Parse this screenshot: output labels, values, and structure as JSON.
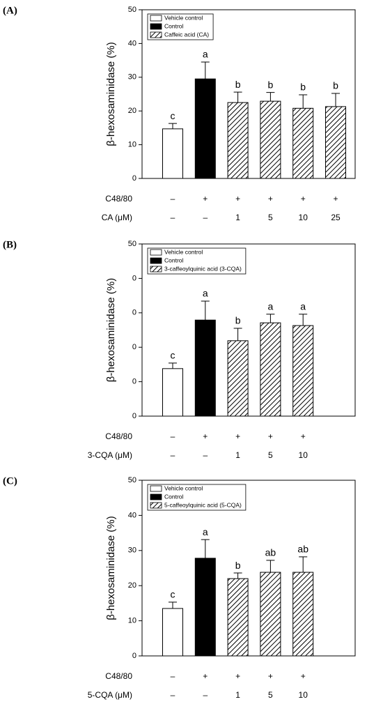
{
  "chart_data": [
    {
      "type": "bar",
      "panel": "(A)",
      "ylabel": "β-hexosaminidase (%)",
      "categories": [
        null,
        null,
        null,
        null,
        null,
        null
      ],
      "ylim": [
        0,
        50
      ],
      "yticks": [
        0,
        10,
        20,
        30,
        40,
        50
      ],
      "series": [
        {
          "name": "Vehicle control",
          "color": "#ffffff",
          "values": [
            14.7,
            null,
            null,
            null,
            null,
            null
          ],
          "errors": [
            1.6,
            null,
            null,
            null,
            null,
            null
          ]
        },
        {
          "name": "Control",
          "color": "#000000",
          "values": [
            null,
            29.5,
            null,
            null,
            null,
            null
          ],
          "errors": [
            null,
            5.0,
            null,
            null,
            null,
            null
          ]
        },
        {
          "name": "Caffeic acid (CA)",
          "color": "#ffffff",
          "pattern": "hatch",
          "values": [
            null,
            null,
            22.5,
            22.9,
            20.8,
            21.3
          ],
          "errors": [
            null,
            null,
            3.1,
            2.6,
            4.0,
            3.9
          ]
        }
      ],
      "letters": [
        "c",
        "a",
        "b",
        "b",
        "b",
        "b"
      ],
      "rows": [
        {
          "label": "C48/80",
          "values": [
            "–",
            "+",
            "+",
            "+",
            "+",
            "+"
          ]
        },
        {
          "label": "CA (μM)",
          "values": [
            "–",
            "–",
            "1",
            "5",
            "10",
            "25"
          ]
        }
      ]
    },
    {
      "type": "bar",
      "panel": "(B)",
      "ylabel": "β-hexosaminidase (%)",
      "categories": [
        null,
        null,
        null,
        null,
        null
      ],
      "ylim": [
        0,
        50
      ],
      "yticks": [
        0,
        {
          "value": 10,
          "label": "0"
        },
        {
          "value": 20,
          "label": "0"
        },
        {
          "value": 30,
          "label": "0"
        },
        {
          "value": 40,
          "label": "0"
        },
        50
      ],
      "series": [
        {
          "name": "Vehicle control",
          "color": "#ffffff",
          "values": [
            13.8,
            null,
            null,
            null,
            null
          ],
          "errors": [
            1.6,
            null,
            null,
            null,
            null
          ]
        },
        {
          "name": "Control",
          "color": "#000000",
          "values": [
            null,
            27.9,
            null,
            null,
            null
          ],
          "errors": [
            null,
            5.5,
            null,
            null,
            null
          ]
        },
        {
          "name": "3-caffeoylquinic acid (3-CQA)",
          "color": "#ffffff",
          "pattern": "hatch",
          "values": [
            null,
            null,
            21.9,
            27.1,
            26.3
          ],
          "errors": [
            null,
            null,
            3.6,
            2.5,
            3.3
          ]
        }
      ],
      "letters": [
        "c",
        "a",
        "b",
        "a",
        "a"
      ],
      "rows": [
        {
          "label": "C48/80",
          "values": [
            "–",
            "+",
            "+",
            "+",
            "+"
          ]
        },
        {
          "label": "3-CQA (μM)",
          "values": [
            "–",
            "–",
            "1",
            "5",
            "10"
          ]
        }
      ]
    },
    {
      "type": "bar",
      "panel": "(C)",
      "ylabel": "β-hexosaminidase (%)",
      "categories": [
        null,
        null,
        null,
        null,
        null
      ],
      "ylim": [
        0,
        50
      ],
      "yticks": [
        0,
        10,
        20,
        30,
        40,
        50
      ],
      "series": [
        {
          "name": "Vehicle control",
          "color": "#ffffff",
          "values": [
            13.5,
            null,
            null,
            null,
            null
          ],
          "errors": [
            1.8,
            null,
            null,
            null,
            null
          ]
        },
        {
          "name": "Control",
          "color": "#000000",
          "values": [
            null,
            27.8,
            null,
            null,
            null
          ],
          "errors": [
            null,
            5.3,
            null,
            null,
            null
          ]
        },
        {
          "name": "5-caffeoylquinic acid (5-CQA)",
          "color": "#ffffff",
          "pattern": "hatch",
          "values": [
            null,
            null,
            22.0,
            23.8,
            23.8
          ],
          "errors": [
            null,
            null,
            1.6,
            3.4,
            4.4
          ]
        }
      ],
      "letters": [
        "c",
        "a",
        "b",
        "ab",
        "ab"
      ],
      "rows": [
        {
          "label": "C48/80",
          "values": [
            "–",
            "+",
            "+",
            "+",
            "+"
          ]
        },
        {
          "label": "5-CQA (μM)",
          "values": [
            "–",
            "–",
            "1",
            "5",
            "10"
          ]
        }
      ]
    }
  ]
}
